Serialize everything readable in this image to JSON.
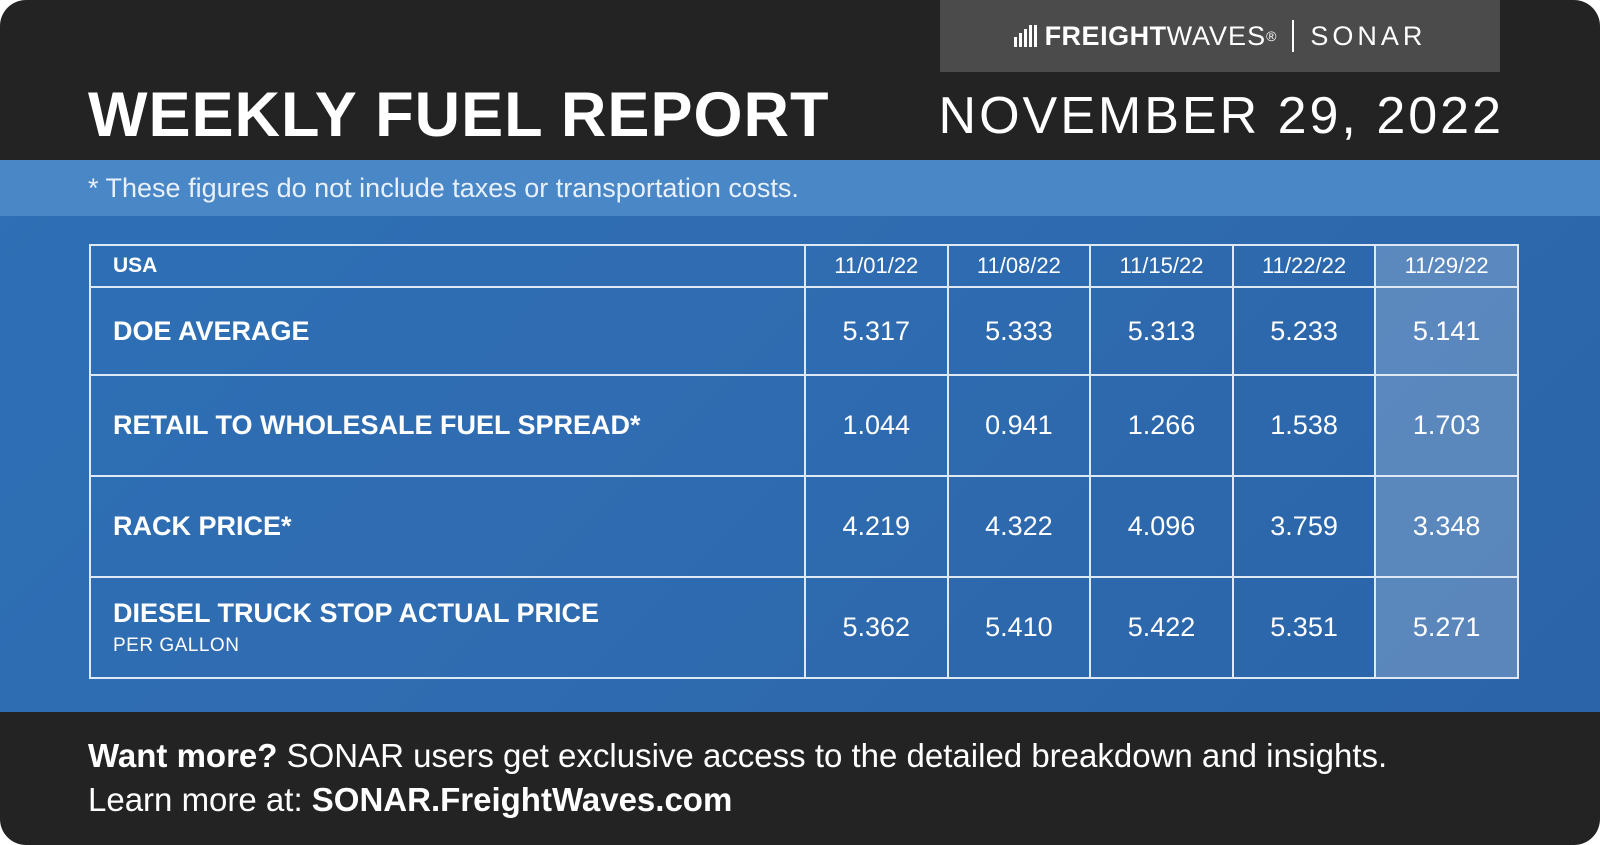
{
  "brand": {
    "name_bold": "FREIGHT",
    "name_light": "WAVES",
    "trademark": "®",
    "product": "SONAR"
  },
  "title": "WEEKLY FUEL REPORT",
  "date": "NOVEMBER 29, 2022",
  "note": "* These figures do not include taxes or transportation costs.",
  "table": {
    "corner_label": "USA",
    "dates": [
      "11/01/22",
      "11/08/22",
      "11/15/22",
      "11/22/22",
      "11/29/22"
    ],
    "rows": [
      {
        "label": "DOE AVERAGE",
        "sublabel": "",
        "values": [
          "5.317",
          "5.333",
          "5.313",
          "5.233",
          "5.141"
        ]
      },
      {
        "label": "RETAIL TO WHOLESALE FUEL SPREAD*",
        "sublabel": "",
        "values": [
          "1.044",
          "0.941",
          "1.266",
          "1.538",
          "1.703"
        ]
      },
      {
        "label": "RACK PRICE*",
        "sublabel": "",
        "values": [
          "4.219",
          "4.322",
          "4.096",
          "3.759",
          "3.348"
        ]
      },
      {
        "label": "DIESEL TRUCK STOP ACTUAL PRICE",
        "sublabel": "PER GALLON",
        "values": [
          "5.362",
          "5.410",
          "5.422",
          "5.351",
          "5.271"
        ]
      }
    ]
  },
  "footer": {
    "lead": "Want more?",
    "line1_rest": " SONAR users get exclusive access to the detailed breakdown and insights.",
    "line2_lead": "Learn more at: ",
    "link": "SONAR.FreightWaves.com"
  },
  "colors": {
    "dark": "#232323",
    "blue": "#2e6fb5",
    "note_band": "#4a87c6",
    "brand_box": "#4b4b4b"
  }
}
